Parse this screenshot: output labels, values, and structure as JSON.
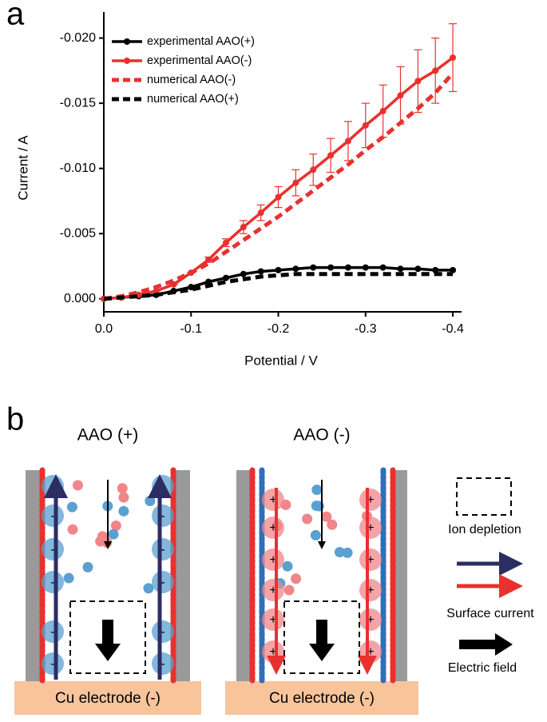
{
  "chart_data": {
    "type": "line",
    "panel_label": "a",
    "x_label": "Potential / V",
    "y_label": "Current / A",
    "x": [
      0,
      -0.02,
      -0.04,
      -0.06,
      -0.08,
      -0.1,
      -0.12,
      -0.14,
      -0.16,
      -0.18,
      -0.2,
      -0.22,
      -0.24,
      -0.26,
      -0.28,
      -0.3,
      -0.32,
      -0.34,
      -0.36,
      -0.38,
      -0.4
    ],
    "xlim": [
      0,
      -0.41
    ],
    "ylim": [
      0.001,
      -0.022
    ],
    "xticks": [
      {
        "value": 0,
        "label": "0.0"
      },
      -0.1,
      -0.2,
      -0.3,
      -0.4
    ],
    "yticks": [
      {
        "value": 0,
        "label": "0.000"
      },
      -0.005,
      {
        "value": -0.01,
        "label": "-0.010"
      },
      -0.015,
      {
        "value": -0.02,
        "label": "-0.020"
      }
    ],
    "legend": "upper left",
    "series": [
      {
        "name": "experimental AAO(+)",
        "color": "#000000",
        "style": "solid",
        "markers": true,
        "values": [
          0,
          -0.0001,
          -0.0002,
          -0.0003,
          -0.0006,
          -0.0009,
          -0.0013,
          -0.0016,
          -0.0019,
          -0.0021,
          -0.0022,
          -0.0023,
          -0.0024,
          -0.0024,
          -0.0024,
          -0.0024,
          -0.0024,
          -0.0023,
          -0.0023,
          -0.0022,
          -0.0022
        ]
      },
      {
        "name": "experimental AAO(-)",
        "color": "#e8312f",
        "style": "solid",
        "markers": true,
        "values": [
          0,
          -0.0001,
          -0.0003,
          -0.0006,
          -0.0011,
          -0.002,
          -0.003,
          -0.0043,
          -0.0055,
          -0.0066,
          -0.0078,
          -0.0089,
          -0.0099,
          -0.011,
          -0.0121,
          -0.0133,
          -0.0144,
          -0.0156,
          -0.0167,
          -0.0175,
          -0.0185
        ],
        "errors": [
          0,
          0,
          0,
          0,
          0,
          0,
          0.0002,
          0.0003,
          0.0005,
          0.0006,
          0.0008,
          0.001,
          0.0012,
          0.0013,
          0.0015,
          0.0017,
          0.002,
          0.0022,
          0.0024,
          0.0025,
          0.0026
        ]
      },
      {
        "name": "numerical AAO(-)",
        "color": "#e8312f",
        "style": "dashed",
        "markers": false,
        "values": [
          0,
          -0.0002,
          -0.0005,
          -0.0009,
          -0.0014,
          -0.002,
          -0.0027,
          -0.0036,
          -0.0045,
          -0.0054,
          -0.0063,
          -0.0073,
          -0.0083,
          -0.0093,
          -0.0103,
          -0.0114,
          -0.0124,
          -0.0135,
          -0.0146,
          -0.0158,
          -0.0173
        ]
      },
      {
        "name": "numerical AAO(+)",
        "color": "#000000",
        "style": "dashed",
        "markers": false,
        "values": [
          0,
          -0.0001,
          -0.0002,
          -0.0003,
          -0.0005,
          -0.0007,
          -0.001,
          -0.0013,
          -0.0015,
          -0.0017,
          -0.0018,
          -0.0019,
          -0.0019,
          -0.0019,
          -0.0019,
          -0.0019,
          -0.0019,
          -0.0019,
          -0.0019,
          -0.0019,
          -0.0019
        ]
      }
    ]
  },
  "diagram": {
    "panel_label": "b",
    "left_panel": {
      "title": "AAO (+)",
      "electrode": "Cu electrode (-)",
      "left_charges": [
        "-",
        "-",
        "-",
        "-",
        "-",
        "-"
      ],
      "right_charges": [
        "-",
        "-",
        "-",
        "-",
        "-",
        "-"
      ]
    },
    "right_panel": {
      "title": "AAO (-)",
      "electrode": "Cu electrode (-)",
      "left_charges": [
        "+",
        "+",
        "+",
        "+",
        "+",
        "+"
      ],
      "right_charges": [
        "+",
        "+",
        "+",
        "+",
        "+",
        "+"
      ]
    },
    "legend": {
      "ion_depletion": "Ion depletion",
      "surface_current": "Surface current",
      "electric_field": "Electric field"
    }
  }
}
